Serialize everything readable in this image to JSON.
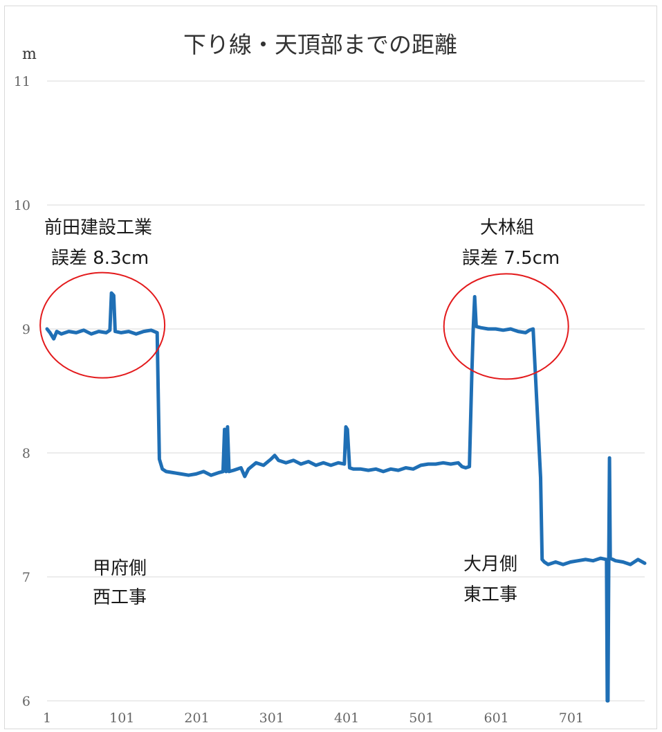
{
  "chart_data": {
    "type": "line",
    "title": "下り線・天頂部までの距離",
    "y_unit": "m",
    "xlabel": "",
    "ylabel": "",
    "ylim": [
      6,
      11
    ],
    "xlim": [
      1,
      799
    ],
    "y_ticks": [
      "6",
      "7",
      "8",
      "9",
      "10",
      "11"
    ],
    "x_ticks": [
      "1",
      "101",
      "201",
      "301",
      "401",
      "501",
      "601",
      "701"
    ],
    "grid": "horizontal",
    "legend": "none",
    "line_color": "#1f6fb5",
    "highlight_color": "#e31a1c",
    "series": [
      {
        "points": [
          [
            1,
            9.0
          ],
          [
            5,
            8.97
          ],
          [
            10,
            8.92
          ],
          [
            14,
            8.98
          ],
          [
            20,
            8.96
          ],
          [
            30,
            8.98
          ],
          [
            40,
            8.97
          ],
          [
            50,
            8.99
          ],
          [
            60,
            8.96
          ],
          [
            70,
            8.98
          ],
          [
            80,
            8.97
          ],
          [
            85,
            8.99
          ],
          [
            87,
            9.29
          ],
          [
            90,
            9.27
          ],
          [
            92,
            8.98
          ],
          [
            100,
            8.97
          ],
          [
            110,
            8.98
          ],
          [
            120,
            8.96
          ],
          [
            130,
            8.98
          ],
          [
            140,
            8.99
          ],
          [
            148,
            8.97
          ],
          [
            151,
            7.95
          ],
          [
            155,
            7.87
          ],
          [
            160,
            7.85
          ],
          [
            170,
            7.84
          ],
          [
            180,
            7.83
          ],
          [
            190,
            7.82
          ],
          [
            200,
            7.83
          ],
          [
            210,
            7.85
          ],
          [
            220,
            7.82
          ],
          [
            230,
            7.84
          ],
          [
            236,
            7.85
          ],
          [
            238,
            8.19
          ],
          [
            240,
            7.85
          ],
          [
            242,
            8.21
          ],
          [
            244,
            7.85
          ],
          [
            250,
            7.86
          ],
          [
            260,
            7.88
          ],
          [
            265,
            7.81
          ],
          [
            270,
            7.87
          ],
          [
            280,
            7.92
          ],
          [
            290,
            7.9
          ],
          [
            300,
            7.95
          ],
          [
            305,
            7.98
          ],
          [
            310,
            7.94
          ],
          [
            320,
            7.92
          ],
          [
            330,
            7.94
          ],
          [
            340,
            7.91
          ],
          [
            350,
            7.93
          ],
          [
            360,
            7.9
          ],
          [
            370,
            7.92
          ],
          [
            380,
            7.9
          ],
          [
            390,
            7.92
          ],
          [
            398,
            7.91
          ],
          [
            400,
            8.21
          ],
          [
            402,
            8.19
          ],
          [
            405,
            7.88
          ],
          [
            410,
            7.87
          ],
          [
            420,
            7.87
          ],
          [
            430,
            7.86
          ],
          [
            440,
            7.87
          ],
          [
            450,
            7.85
          ],
          [
            460,
            7.87
          ],
          [
            470,
            7.86
          ],
          [
            480,
            7.88
          ],
          [
            490,
            7.87
          ],
          [
            500,
            7.9
          ],
          [
            510,
            7.91
          ],
          [
            520,
            7.91
          ],
          [
            530,
            7.92
          ],
          [
            540,
            7.91
          ],
          [
            550,
            7.92
          ],
          [
            555,
            7.89
          ],
          [
            560,
            7.88
          ],
          [
            565,
            7.89
          ],
          [
            568,
            8.6
          ],
          [
            570,
            9.0
          ],
          [
            572,
            9.26
          ],
          [
            574,
            9.02
          ],
          [
            580,
            9.01
          ],
          [
            590,
            9.0
          ],
          [
            600,
            9.0
          ],
          [
            610,
            8.99
          ],
          [
            620,
            9.0
          ],
          [
            630,
            8.98
          ],
          [
            640,
            8.97
          ],
          [
            645,
            8.99
          ],
          [
            650,
            9.0
          ],
          [
            655,
            8.4
          ],
          [
            660,
            7.8
          ],
          [
            662,
            7.14
          ],
          [
            665,
            7.12
          ],
          [
            670,
            7.1
          ],
          [
            680,
            7.12
          ],
          [
            690,
            7.1
          ],
          [
            700,
            7.12
          ],
          [
            710,
            7.13
          ],
          [
            720,
            7.14
          ],
          [
            730,
            7.13
          ],
          [
            740,
            7.15
          ],
          [
            748,
            7.14
          ],
          [
            749,
            6.0
          ],
          [
            750,
            6.0
          ],
          [
            751,
            7.1
          ],
          [
            752,
            7.96
          ],
          [
            753,
            7.15
          ],
          [
            760,
            7.13
          ],
          [
            770,
            7.12
          ],
          [
            780,
            7.1
          ],
          [
            790,
            7.14
          ],
          [
            799,
            7.11
          ]
        ]
      }
    ],
    "annotations": [
      {
        "lines": [
          "前田建設工業",
          "誤差 8.3cm"
        ],
        "center": [
          75,
          9.03
        ]
      },
      {
        "lines": [
          "大林組",
          "誤差 7.5cm"
        ],
        "center": [
          614,
          9.02
        ]
      },
      {
        "lines": [
          "甲府側",
          "西工事"
        ]
      },
      {
        "lines": [
          "大月側",
          "東工事"
        ]
      }
    ]
  }
}
